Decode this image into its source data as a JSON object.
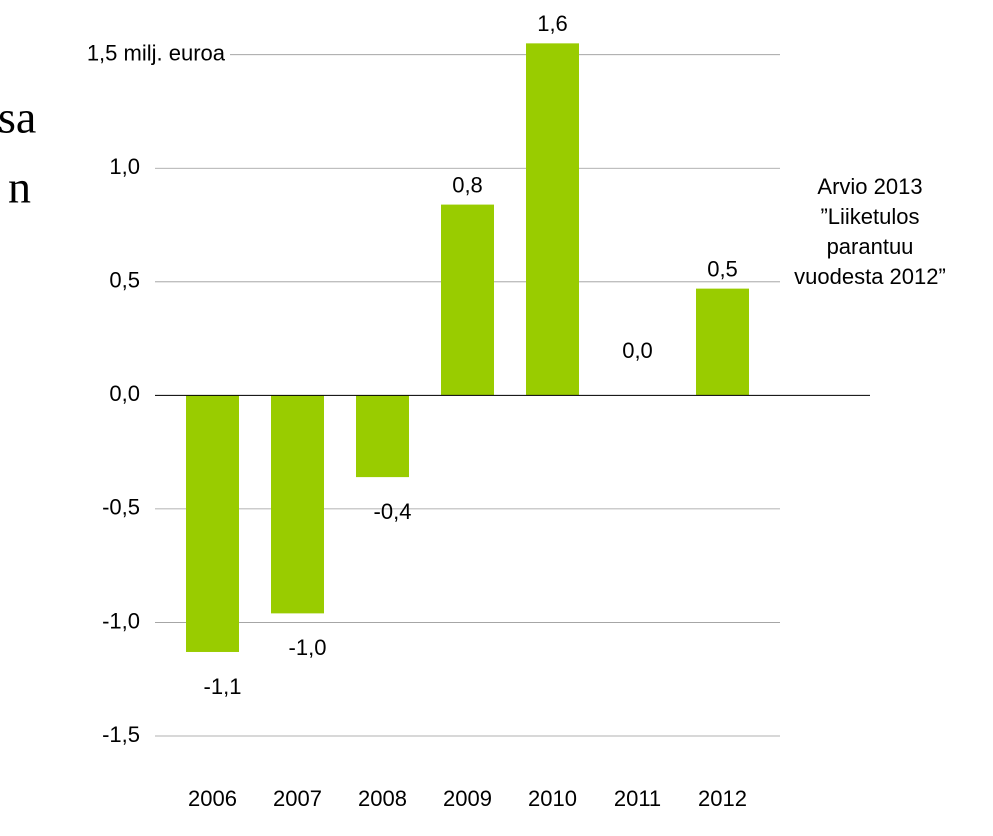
{
  "fragments": [
    "sa",
    "n"
  ],
  "chart_data": {
    "type": "bar",
    "categories": [
      "2006",
      "2007",
      "2008",
      "2009",
      "2010",
      "2011",
      "2012"
    ],
    "values": [
      -1.13,
      -0.96,
      -0.36,
      0.84,
      1.55,
      0.0,
      0.47
    ],
    "value_labels": [
      "-1,1",
      "-1,0",
      "-0,4",
      "0,8",
      "1,6",
      "0,0",
      "0,5"
    ],
    "color": "#99cc00",
    "ylim": [
      -1.5,
      1.6
    ],
    "yticks": [
      {
        "value": -1.5,
        "label": "-1,5"
      },
      {
        "value": -1.0,
        "label": "-1,0"
      },
      {
        "value": -0.5,
        "label": "-0,5"
      },
      {
        "value": 0,
        "label": "0,0"
      },
      {
        "value": 0.5,
        "label": "0,5"
      },
      {
        "value": 1.0,
        "label": "1,0"
      },
      {
        "value": 1.5,
        "label": "1,5 milj. euroa"
      }
    ],
    "grid": true,
    "annotation": [
      "Arvio 2013",
      "”Liiketulos",
      "parantuu",
      "vuodesta 2012”"
    ]
  }
}
